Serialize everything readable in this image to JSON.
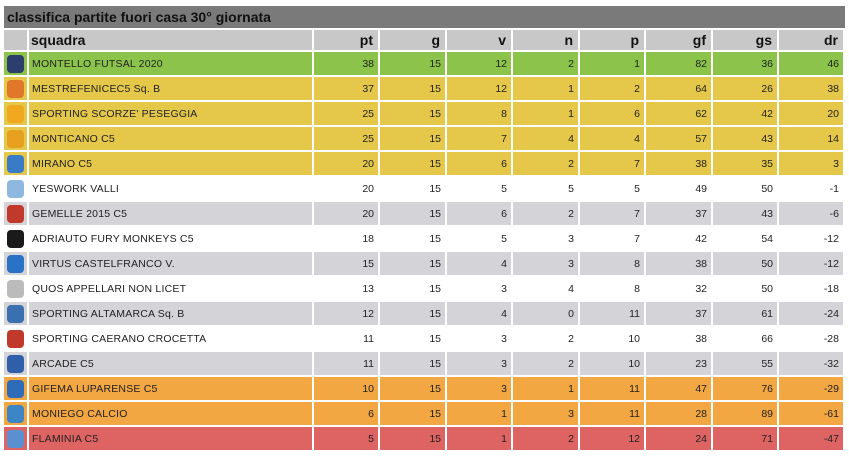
{
  "title": "classifica partite fuori casa 30° giornata",
  "headers": {
    "team": "squadra",
    "pt": "pt",
    "g": "g",
    "v": "v",
    "n": "n",
    "p": "p",
    "gf": "gf",
    "gs": "gs",
    "dr": "dr"
  },
  "rows": [
    {
      "team": "MONTELLO FUTSAL 2020",
      "pt": "38",
      "g": "15",
      "v": "12",
      "n": "2",
      "p": "1",
      "gf": "82",
      "gs": "36",
      "dr": "46",
      "band": "green",
      "icon": "montello-logo-icon",
      "logo_color": "#2c3e6b"
    },
    {
      "team": "MESTREFENICEC5 Sq. B",
      "pt": "37",
      "g": "15",
      "v": "12",
      "n": "1",
      "p": "2",
      "gf": "64",
      "gs": "26",
      "dr": "38",
      "band": "yellow",
      "icon": "mestrefenice-logo-icon",
      "logo_color": "#e0772a"
    },
    {
      "team": "SPORTING SCORZE' PESEGGIA",
      "pt": "25",
      "g": "15",
      "v": "8",
      "n": "1",
      "p": "6",
      "gf": "62",
      "gs": "42",
      "dr": "20",
      "band": "yellow",
      "icon": "sporting-scorze-logo-icon",
      "logo_color": "#f0a820"
    },
    {
      "team": "MONTICANO C5",
      "pt": "25",
      "g": "15",
      "v": "7",
      "n": "4",
      "p": "4",
      "gf": "57",
      "gs": "43",
      "dr": "14",
      "band": "yellow",
      "icon": "monticano-logo-icon",
      "logo_color": "#e8a020"
    },
    {
      "team": "MIRANO C5",
      "pt": "20",
      "g": "15",
      "v": "6",
      "n": "2",
      "p": "7",
      "gf": "38",
      "gs": "35",
      "dr": "3",
      "band": "yellow",
      "icon": "mirano-logo-icon",
      "logo_color": "#3a7bc8"
    },
    {
      "team": "YESWORK VALLI",
      "pt": "20",
      "g": "15",
      "v": "5",
      "n": "5",
      "p": "5",
      "gf": "49",
      "gs": "50",
      "dr": "-1",
      "band": "white",
      "icon": "yeswork-logo-icon",
      "logo_color": "#8fb8e0"
    },
    {
      "team": "GEMELLE 2015 C5",
      "pt": "20",
      "g": "15",
      "v": "6",
      "n": "2",
      "p": "7",
      "gf": "37",
      "gs": "43",
      "dr": "-6",
      "band": "grey",
      "icon": "gemelle-logo-icon",
      "logo_color": "#c0392b"
    },
    {
      "team": "ADRIAUTO FURY MONKEYS C5",
      "pt": "18",
      "g": "15",
      "v": "5",
      "n": "3",
      "p": "7",
      "gf": "42",
      "gs": "54",
      "dr": "-12",
      "band": "white",
      "icon": "fury-monkeys-logo-icon",
      "logo_color": "#1a1a1a"
    },
    {
      "team": "VIRTUS CASTELFRANCO V.",
      "pt": "15",
      "g": "15",
      "v": "4",
      "n": "3",
      "p": "8",
      "gf": "38",
      "gs": "50",
      "dr": "-12",
      "band": "grey",
      "icon": "virtus-logo-icon",
      "logo_color": "#2a72c4"
    },
    {
      "team": "QUOS APPELLARI NON LICET",
      "pt": "13",
      "g": "15",
      "v": "3",
      "n": "4",
      "p": "8",
      "gf": "32",
      "gs": "50",
      "dr": "-18",
      "band": "white",
      "icon": "quos-logo-icon",
      "logo_color": "#bbbbbb"
    },
    {
      "team": "SPORTING ALTAMARCA Sq. B",
      "pt": "12",
      "g": "15",
      "v": "4",
      "n": "0",
      "p": "11",
      "gf": "37",
      "gs": "61",
      "dr": "-24",
      "band": "grey",
      "icon": "altamarca-logo-icon",
      "logo_color": "#3a6fb0"
    },
    {
      "team": "SPORTING CAERANO CROCETTA",
      "pt": "11",
      "g": "15",
      "v": "3",
      "n": "2",
      "p": "10",
      "gf": "38",
      "gs": "66",
      "dr": "-28",
      "band": "white",
      "icon": "caerano-logo-icon",
      "logo_color": "#c0392b"
    },
    {
      "team": "ARCADE C5",
      "pt": "11",
      "g": "15",
      "v": "3",
      "n": "2",
      "p": "10",
      "gf": "23",
      "gs": "55",
      "dr": "-32",
      "band": "grey",
      "icon": "arcade-logo-icon",
      "logo_color": "#2e5fa8"
    },
    {
      "team": "GIFEMA LUPARENSE C5",
      "pt": "10",
      "g": "15",
      "v": "3",
      "n": "1",
      "p": "11",
      "gf": "47",
      "gs": "76",
      "dr": "-29",
      "band": "orange",
      "icon": "luparense-logo-icon",
      "logo_color": "#2e6bb8"
    },
    {
      "team": "MONIEGO CALCIO",
      "pt": "6",
      "g": "15",
      "v": "1",
      "n": "3",
      "p": "11",
      "gf": "28",
      "gs": "89",
      "dr": "-61",
      "band": "orange",
      "icon": "moniego-logo-icon",
      "logo_color": "#3d86c6"
    },
    {
      "team": "FLAMINIA C5",
      "pt": "5",
      "g": "15",
      "v": "1",
      "n": "2",
      "p": "12",
      "gf": "24",
      "gs": "71",
      "dr": "-47",
      "band": "red",
      "icon": "flaminia-logo-icon",
      "logo_color": "#5a8fd0"
    }
  ]
}
